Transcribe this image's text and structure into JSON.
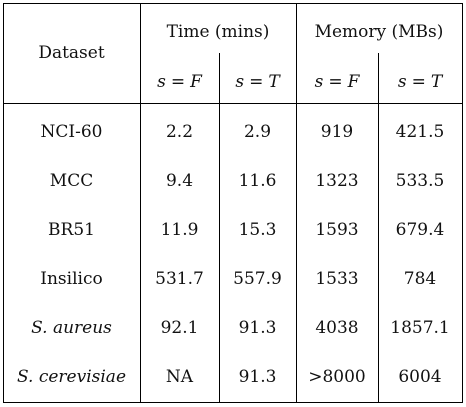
{
  "table": {
    "header": {
      "dataset": "Dataset",
      "time_group": "Time (mins)",
      "memory_group": "Memory (MBs)",
      "sub": [
        {
          "var": "s",
          "eq": "=",
          "val": "F"
        },
        {
          "var": "s",
          "eq": "=",
          "val": "T"
        },
        {
          "var": "s",
          "eq": "=",
          "val": "F"
        },
        {
          "var": "s",
          "eq": "=",
          "val": "T"
        }
      ]
    },
    "rows": [
      {
        "dataset": "NCI-60",
        "italic": false,
        "time_f": "2.2",
        "time_t": "2.9",
        "mem_f": "919",
        "mem_t": "421.5"
      },
      {
        "dataset": "MCC",
        "italic": false,
        "time_f": "9.4",
        "time_t": "11.6",
        "mem_f": "1323",
        "mem_t": "533.5"
      },
      {
        "dataset": "BR51",
        "italic": false,
        "time_f": "11.9",
        "time_t": "15.3",
        "mem_f": "1593",
        "mem_t": "679.4"
      },
      {
        "dataset": "Insilico",
        "italic": false,
        "time_f": "531.7",
        "time_t": "557.9",
        "mem_f": "1533",
        "mem_t": "784"
      },
      {
        "dataset": "S. aureus",
        "italic": true,
        "time_f": "92.1",
        "time_t": "91.3",
        "mem_f": "4038",
        "mem_t": "1857.1"
      },
      {
        "dataset": "S. cerevisiae",
        "italic": true,
        "time_f": "NA",
        "time_t": "91.3",
        "mem_f": ">8000",
        "mem_t": "6004"
      }
    ]
  }
}
